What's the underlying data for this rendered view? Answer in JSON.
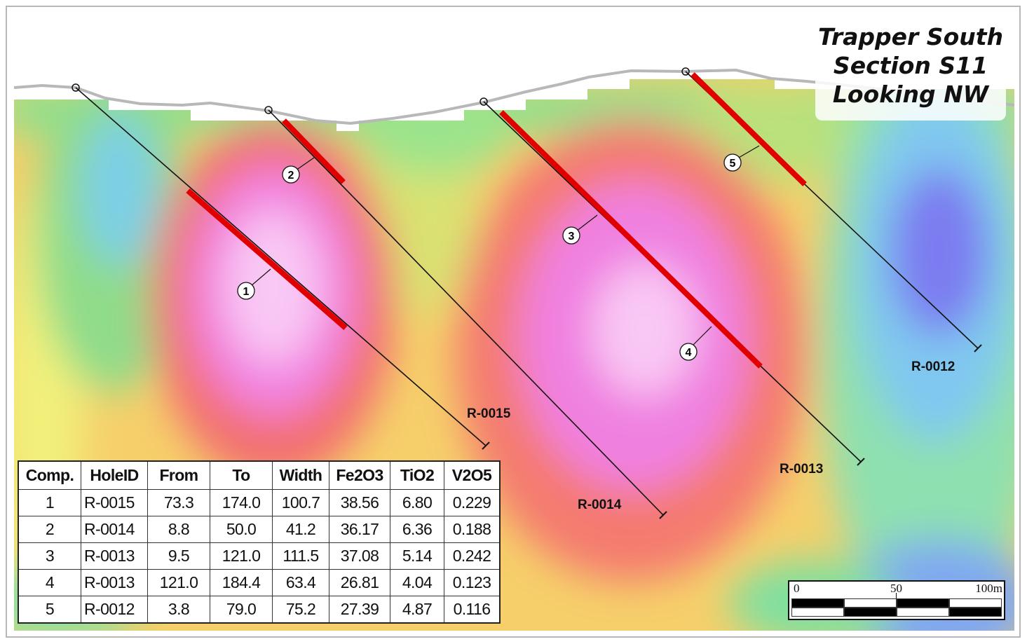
{
  "title": {
    "line1": "Trapper South",
    "line2": "Section S11",
    "line3": "Looking NW"
  },
  "holes": [
    "R-0015",
    "R-0014",
    "R-0013",
    "R-0012"
  ],
  "composite_labels": [
    "1",
    "2",
    "3",
    "4",
    "5"
  ],
  "table": {
    "headers": [
      "Comp.",
      "HoleID",
      "From",
      "To",
      "Width",
      "Fe2O3",
      "TiO2",
      "V2O5"
    ],
    "rows": [
      [
        "1",
        "R-0015",
        "73.3",
        "174.0",
        "100.7",
        "38.56",
        "6.80",
        "0.229"
      ],
      [
        "2",
        "R-0014",
        "8.8",
        "50.0",
        "41.2",
        "36.17",
        "6.36",
        "0.188"
      ],
      [
        "3",
        "R-0013",
        "9.5",
        "121.0",
        "111.5",
        "37.08",
        "5.14",
        "0.242"
      ],
      [
        "4",
        "R-0013",
        "121.0",
        "184.4",
        "63.4",
        "26.81",
        "4.04",
        "0.123"
      ],
      [
        "5",
        "R-0012",
        "3.8",
        "79.0",
        "75.2",
        "27.39",
        "4.87",
        "0.116"
      ]
    ]
  },
  "scale_bar": {
    "labels": [
      "0",
      "50",
      "100m"
    ]
  },
  "colors": {
    "intercept": "#e00000",
    "high_grade": "#f9c8f4",
    "low_grade": "#8078f0"
  }
}
